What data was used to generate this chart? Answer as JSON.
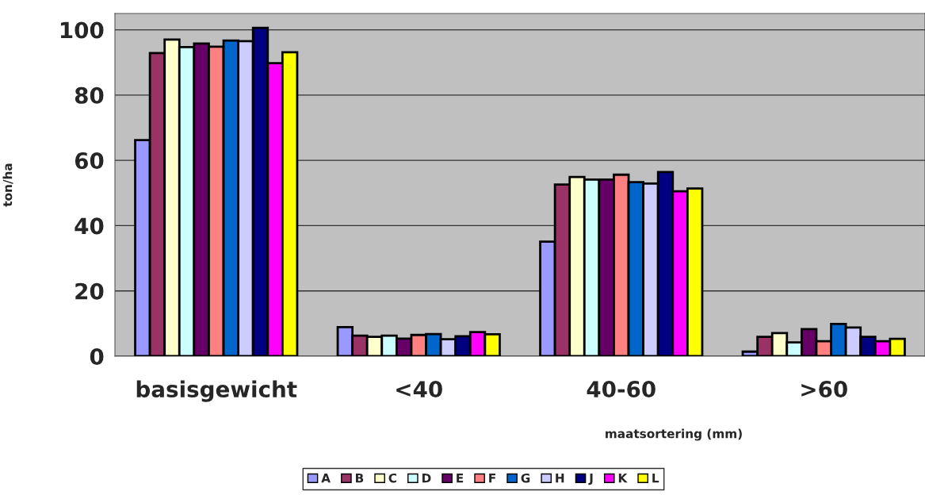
{
  "chart_data": {
    "type": "bar",
    "xlabel": "maatsortering (mm)",
    "ylabel": "ton/ha",
    "categories": [
      "basisgewicht",
      "<40",
      "40-60",
      ">60"
    ],
    "ylim": [
      0,
      105
    ],
    "yticks": [
      0,
      20,
      40,
      60,
      80,
      100
    ],
    "grid": "y",
    "legend": "bottom",
    "series": [
      {
        "name": "A",
        "color": "#9999ff",
        "values": [
          66.2,
          8.9,
          35.1,
          1.4
        ]
      },
      {
        "name": "B",
        "color": "#993366",
        "values": [
          92.9,
          6.3,
          52.6,
          5.9
        ]
      },
      {
        "name": "C",
        "color": "#ffffcc",
        "values": [
          97.0,
          5.9,
          54.9,
          7.1
        ]
      },
      {
        "name": "D",
        "color": "#ccffff",
        "values": [
          94.7,
          6.3,
          54.1,
          4.2
        ]
      },
      {
        "name": "E",
        "color": "#660066",
        "values": [
          95.8,
          5.4,
          54.1,
          8.3
        ]
      },
      {
        "name": "F",
        "color": "#ff8080",
        "values": [
          94.8,
          6.5,
          55.6,
          4.6
        ]
      },
      {
        "name": "G",
        "color": "#0066cc",
        "values": [
          96.7,
          6.8,
          53.3,
          9.9
        ]
      },
      {
        "name": "H",
        "color": "#ccccff",
        "values": [
          96.5,
          5.2,
          52.9,
          8.8
        ]
      },
      {
        "name": "J",
        "color": "#000080",
        "values": [
          100.6,
          6.1,
          56.4,
          5.9
        ]
      },
      {
        "name": "K",
        "color": "#ff00ff",
        "values": [
          89.8,
          7.4,
          50.5,
          4.6
        ]
      },
      {
        "name": "L",
        "color": "#ffff00",
        "values": [
          93.1,
          6.7,
          51.4,
          5.3
        ]
      }
    ]
  }
}
